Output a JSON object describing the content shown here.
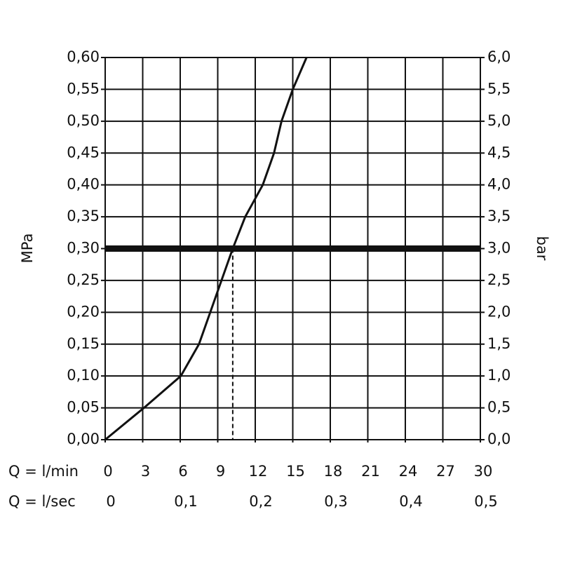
{
  "chart_data": {
    "type": "line",
    "ylabel": "MPa",
    "y2label": "bar",
    "xlabel": "Q = l/min",
    "x2label": "Q = l/sec",
    "x": [
      0,
      3.1,
      6.05,
      7.5,
      8.4,
      9.3,
      10.2,
      11.2,
      12.6,
      13.5,
      14.1,
      15.0,
      16.1
    ],
    "values": [
      0,
      0.05,
      0.1,
      0.15,
      0.2,
      0.25,
      0.3,
      0.35,
      0.4,
      0.45,
      0.5,
      0.55,
      0.6
    ],
    "color": "#111111",
    "hline": 0.3,
    "vline": 10.2,
    "xlim": [
      0,
      30
    ],
    "xticks": [
      0,
      3,
      6,
      9,
      12,
      15,
      18,
      21,
      24,
      27,
      30
    ],
    "x2lim": [
      0,
      0.5
    ],
    "x2ticks": [
      0,
      {
        "value": 0.1,
        "label": "0,1"
      },
      {
        "value": 0.2,
        "label": "0,2"
      },
      {
        "value": 0.3,
        "label": "0,3"
      },
      {
        "value": 0.4,
        "label": "0,4"
      },
      {
        "value": 0.5,
        "label": "0,5"
      }
    ],
    "ylim": [
      0,
      0.6
    ],
    "yticks": [
      {
        "value": 0,
        "label": "0,00"
      },
      {
        "value": 0.05,
        "label": "0,05"
      },
      {
        "value": 0.1,
        "label": "0,10"
      },
      {
        "value": 0.15,
        "label": "0,15"
      },
      {
        "value": 0.2,
        "label": "0,20"
      },
      {
        "value": 0.25,
        "label": "0,25"
      },
      {
        "value": 0.3,
        "label": "0,30"
      },
      {
        "value": 0.35,
        "label": "0,35"
      },
      {
        "value": 0.4,
        "label": "0,40"
      },
      {
        "value": 0.45,
        "label": "0,45"
      },
      {
        "value": 0.5,
        "label": "0,50"
      },
      {
        "value": 0.55,
        "label": "0,55"
      },
      {
        "value": 0.6,
        "label": "0,60"
      }
    ],
    "y2lim": [
      0,
      6
    ],
    "y2ticks": [
      {
        "value": 0,
        "label": "0,0"
      },
      {
        "value": 0.5,
        "label": "0,5"
      },
      {
        "value": 1,
        "label": "1,0"
      },
      {
        "value": 1.5,
        "label": "1,5"
      },
      {
        "value": 2,
        "label": "2,0"
      },
      {
        "value": 2.5,
        "label": "2,5"
      },
      {
        "value": 3,
        "label": "3,0"
      },
      {
        "value": 3.5,
        "label": "3,5"
      },
      {
        "value": 4,
        "label": "4,0"
      },
      {
        "value": 4.5,
        "label": "4,5"
      },
      {
        "value": 5,
        "label": "5,0"
      },
      {
        "value": 5.5,
        "label": "5,5"
      },
      {
        "value": 6,
        "label": "6,0"
      }
    ],
    "grid": true
  }
}
